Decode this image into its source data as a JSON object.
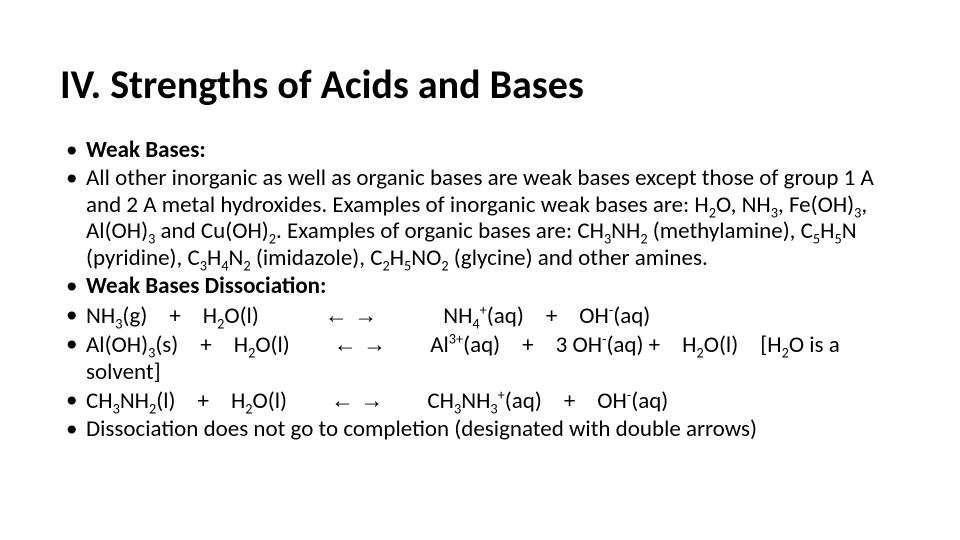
{
  "type": "slide",
  "background_color": "#ffffff",
  "text_color": "#000000",
  "title": {
    "text": "IV. Strengths of Acids and Bases",
    "font_size_pt": 40,
    "font_weight": 700
  },
  "body": {
    "font_size_pt": 23,
    "line_height": 1.15,
    "bullet_glyph": "•",
    "items": [
      {
        "kind": "heading",
        "text": "Weak Bases:"
      },
      {
        "kind": "paragraph",
        "text_plain": "All other inorganic as well as organic bases are weak bases except those of group 1 A and 2 A metal hydroxides. Examples of inorganic weak bases are: H2O, NH3, Fe(OH)3, Al(OH)3 and Cu(OH)2. Examples of organic bases are: CH3NH2 (methylamine), C5H5N (pyridine), C3H4N2 (imidazole), C2H5NO2 (glycine) and other amines."
      },
      {
        "kind": "heading",
        "text": "Weak Bases Dissociation:"
      },
      {
        "kind": "equation",
        "reactants": [
          "NH3(g)",
          "H2O(l)"
        ],
        "arrow": "equilibrium",
        "products": [
          "NH4+(aq)",
          "OH-(aq)"
        ],
        "note": null
      },
      {
        "kind": "equation",
        "reactants": [
          "Al(OH)3(s)",
          "H2O(l)"
        ],
        "arrow": "equilibrium",
        "products": [
          "Al3+(aq)",
          "3 OH-(aq)",
          "H2O(l)"
        ],
        "note": "[H2O is a solvent]"
      },
      {
        "kind": "equation",
        "reactants": [
          "CH3NH2(l)",
          "H2O(l)"
        ],
        "arrow": "equilibrium",
        "products": [
          "CH3NH3+(aq)",
          "OH-(aq)"
        ],
        "note": null
      },
      {
        "kind": "paragraph",
        "text_plain": "Dissociation does not go to completion (designated with double arrows)"
      }
    ]
  },
  "strings": {
    "b1": "Weak Bases:",
    "b3": "Weak Bases Dissociation:",
    "b7": "Dissociation does not go to completion (designated with double arrows)"
  }
}
